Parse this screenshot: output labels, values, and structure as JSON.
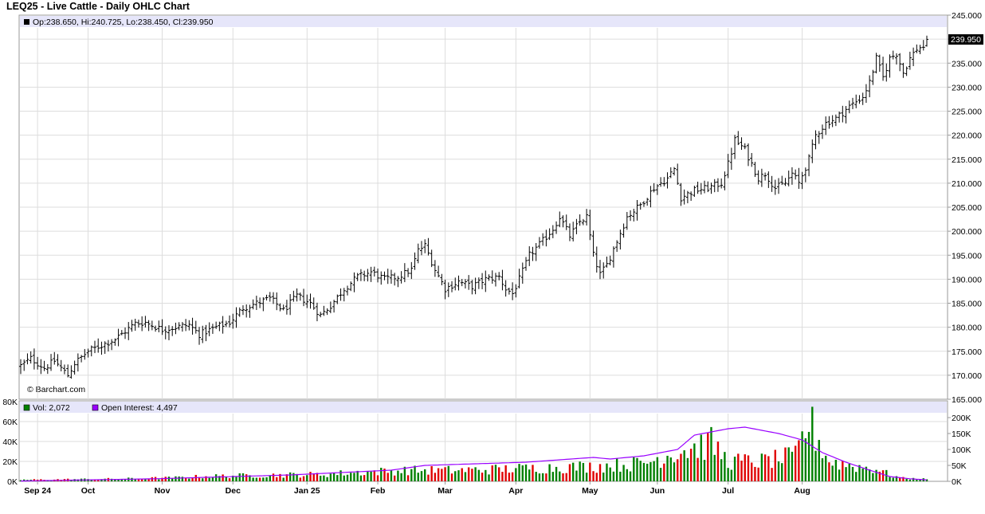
{
  "chart_data": [
    {
      "type": "ohlc",
      "title": "LEQ25 - Live Cattle - Daily OHLC Chart",
      "info": "Op:238.650, Hi:240.725, Lo:238.450, Cl:239.950",
      "watermark": "© Barchart.com",
      "last_price_label": "239.950",
      "ylim": [
        165,
        245
      ],
      "yticks": [
        "165.000",
        "170.000",
        "175.000",
        "180.000",
        "185.000",
        "190.000",
        "195.000",
        "200.000",
        "205.000",
        "210.000",
        "215.000",
        "220.000",
        "225.000",
        "230.000",
        "235.000",
        "240.000",
        "245.000"
      ],
      "x_tick_labels": [
        "Sep 24",
        "Oct",
        "Nov",
        "Dec",
        "Jan 25",
        "Feb",
        "Mar",
        "Apr",
        "May",
        "Jun",
        "Jul",
        "Aug"
      ],
      "grid": true,
      "waypoints_close": [
        [
          0,
          172
        ],
        [
          3,
          173.5
        ],
        [
          7,
          171.5
        ],
        [
          10,
          173
        ],
        [
          14,
          170
        ],
        [
          16,
          172.5
        ],
        [
          20,
          175
        ],
        [
          28,
          177.5
        ],
        [
          34,
          180.8
        ],
        [
          37,
          181
        ],
        [
          42,
          179.5
        ],
        [
          50,
          180.5
        ],
        [
          53,
          178.5
        ],
        [
          58,
          180
        ],
        [
          62,
          181
        ],
        [
          66,
          184
        ],
        [
          70,
          185
        ],
        [
          74,
          186
        ],
        [
          78,
          183.5
        ],
        [
          82,
          186.5
        ],
        [
          86,
          185
        ],
        [
          89,
          182.5
        ],
        [
          92,
          184.5
        ],
        [
          96,
          188
        ],
        [
          100,
          190.5
        ],
        [
          104,
          191.5
        ],
        [
          108,
          190
        ],
        [
          112,
          190.5
        ],
        [
          116,
          192
        ],
        [
          118,
          196
        ],
        [
          120,
          197
        ],
        [
          123,
          192
        ],
        [
          126,
          188
        ],
        [
          130,
          189.5
        ],
        [
          134,
          188.5
        ],
        [
          138,
          190
        ],
        [
          142,
          190.5
        ],
        [
          144,
          188
        ],
        [
          146,
          187
        ],
        [
          148,
          190
        ],
        [
          151,
          195
        ],
        [
          155,
          198
        ],
        [
          158,
          200.5
        ],
        [
          160,
          203
        ],
        [
          163,
          199
        ],
        [
          166,
          202
        ],
        [
          168,
          203
        ],
        [
          170,
          195
        ],
        [
          172,
          191
        ],
        [
          174,
          193
        ],
        [
          177,
          198
        ],
        [
          180,
          203
        ],
        [
          184,
          205.5
        ],
        [
          188,
          209
        ],
        [
          192,
          211
        ],
        [
          194,
          213
        ],
        [
          196,
          207
        ],
        [
          200,
          208.5
        ],
        [
          204,
          209
        ],
        [
          208,
          210
        ],
        [
          210,
          214
        ],
        [
          212,
          219
        ],
        [
          215,
          217
        ],
        [
          217,
          214
        ],
        [
          219,
          211
        ],
        [
          221,
          212
        ],
        [
          224,
          209
        ],
        [
          227,
          210
        ],
        [
          229,
          212
        ],
        [
          231,
          210
        ],
        [
          234,
          215
        ],
        [
          236,
          220
        ],
        [
          239,
          222.5
        ],
        [
          242,
          223.5
        ],
        [
          246,
          226
        ],
        [
          250,
          228
        ],
        [
          252,
          231
        ],
        [
          254,
          236
        ],
        [
          256,
          232
        ],
        [
          258,
          236
        ],
        [
          260,
          237
        ],
        [
          262,
          233
        ],
        [
          264,
          236
        ],
        [
          266,
          238
        ],
        [
          268,
          238.5
        ],
        [
          269,
          239.95
        ]
      ],
      "volume": {
        "label": "Vol: 2,072",
        "ylim_vol": [
          0,
          80000
        ],
        "left_ticks": [
          "0K",
          "20K",
          "40K",
          "60K",
          "80K"
        ],
        "waypoints": [
          [
            0,
            1500
          ],
          [
            30,
            2500
          ],
          [
            45,
            3500
          ],
          [
            55,
            5000
          ],
          [
            70,
            6000
          ],
          [
            90,
            7000
          ],
          [
            100,
            9000
          ],
          [
            115,
            11000
          ],
          [
            130,
            11000
          ],
          [
            150,
            13000
          ],
          [
            170,
            15000
          ],
          [
            185,
            18000
          ],
          [
            195,
            30000
          ],
          [
            205,
            38000
          ],
          [
            210,
            20000
          ],
          [
            220,
            20000
          ],
          [
            230,
            25000
          ],
          [
            234,
            60000
          ],
          [
            237,
            40000
          ],
          [
            240,
            20000
          ],
          [
            248,
            15000
          ],
          [
            255,
            12000
          ],
          [
            258,
            6000
          ],
          [
            262,
            3000
          ],
          [
            269,
            2072
          ]
        ]
      },
      "open_interest": {
        "label": "Open Interest: 4,497",
        "ylim_oi": [
          0,
          250000
        ],
        "right_ticks": [
          "0K",
          "50K",
          "100K",
          "150K",
          "200K"
        ],
        "waypoints": [
          [
            0,
            1000
          ],
          [
            40,
            8000
          ],
          [
            80,
            20000
          ],
          [
            110,
            35000
          ],
          [
            120,
            50000
          ],
          [
            150,
            60000
          ],
          [
            170,
            75000
          ],
          [
            175,
            70000
          ],
          [
            185,
            80000
          ],
          [
            195,
            100000
          ],
          [
            200,
            145000
          ],
          [
            210,
            165000
          ],
          [
            215,
            170000
          ],
          [
            225,
            150000
          ],
          [
            232,
            130000
          ],
          [
            238,
            90000
          ],
          [
            245,
            60000
          ],
          [
            252,
            35000
          ],
          [
            258,
            15000
          ],
          [
            264,
            8000
          ],
          [
            269,
            4497
          ]
        ]
      },
      "colors": {
        "up": "#008000",
        "down": "#e00000",
        "oi": "#9900ff",
        "panel_header": "#e6e6fa",
        "bar": "#000000"
      }
    }
  ]
}
